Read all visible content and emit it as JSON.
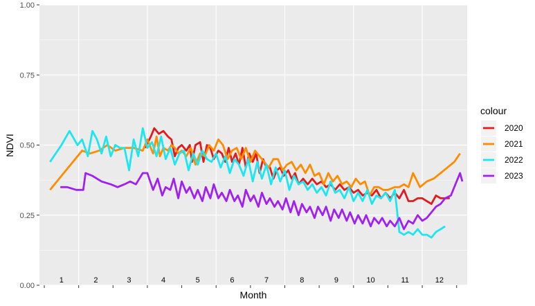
{
  "chart_data": {
    "type": "line",
    "title": "",
    "xlabel": "Month",
    "ylabel": "NDVI",
    "ylim": [
      0,
      1
    ],
    "xlim": [
      0,
      365
    ],
    "yticks": [
      "0.00",
      "0.25",
      "0.50",
      "0.75",
      "1.00"
    ],
    "ytick_values": [
      0,
      0.25,
      0.5,
      0.75,
      1
    ],
    "month_labels": [
      "1",
      "2",
      "3",
      "4",
      "5",
      "6",
      "7",
      "8",
      "9",
      "10",
      "11",
      "12"
    ],
    "month_label_positions": [
      15,
      45,
      74,
      104,
      134,
      164,
      194,
      225,
      255,
      285,
      315,
      345
    ],
    "x_tick_positions": [
      0,
      30,
      60,
      90,
      120,
      150,
      180,
      210,
      240,
      270,
      300,
      330,
      360
    ],
    "grid": true,
    "legend_title": "colour",
    "legend_position": "right",
    "series": [
      {
        "name": "2020",
        "color": "#e31a1c",
        "x": [
          88,
          93,
          96,
          100,
          104,
          108,
          111,
          114,
          117,
          120,
          124,
          127,
          129,
          132,
          136,
          139,
          142,
          145,
          148,
          152,
          155,
          158,
          161,
          164,
          167,
          170,
          173,
          176,
          179,
          182,
          185,
          188,
          191,
          194,
          197,
          200,
          203,
          206,
          209,
          213,
          216,
          219,
          222,
          226,
          230,
          234,
          238,
          242,
          246,
          250,
          254,
          258,
          262,
          266,
          270,
          274,
          278,
          282,
          286,
          290,
          294,
          298,
          302,
          306,
          310,
          314,
          318,
          322,
          326,
          330,
          334,
          338,
          342,
          346,
          350,
          354
        ],
        "y": [
          0.49,
          0.53,
          0.56,
          0.54,
          0.55,
          0.53,
          0.52,
          0.46,
          0.49,
          0.5,
          0.48,
          0.5,
          0.44,
          0.5,
          0.51,
          0.44,
          0.5,
          0.49,
          0.45,
          0.48,
          0.47,
          0.44,
          0.49,
          0.44,
          0.47,
          0.43,
          0.49,
          0.42,
          0.47,
          0.44,
          0.47,
          0.4,
          0.45,
          0.42,
          0.42,
          0.38,
          0.41,
          0.42,
          0.39,
          0.41,
          0.38,
          0.4,
          0.36,
          0.38,
          0.36,
          0.38,
          0.36,
          0.37,
          0.35,
          0.36,
          0.34,
          0.36,
          0.34,
          0.35,
          0.33,
          0.34,
          0.32,
          0.33,
          0.32,
          0.34,
          0.31,
          0.33,
          0.31,
          0.33,
          0.31,
          0.34,
          0.3,
          0.3,
          0.31,
          0.31,
          0.3,
          0.29,
          0.32,
          0.31,
          0.31,
          0.31
        ]
      },
      {
        "name": "2021",
        "color": "#ff8c00",
        "x": [
          5,
          15,
          25,
          33,
          40,
          48,
          55,
          62,
          70,
          78,
          86,
          90,
          95,
          98,
          101,
          104,
          108,
          111,
          114,
          117,
          120,
          124,
          128,
          132,
          136,
          140,
          144,
          148,
          152,
          156,
          160,
          164,
          168,
          172,
          176,
          180,
          184,
          188,
          192,
          196,
          200,
          204,
          208,
          212,
          216,
          220,
          224,
          228,
          232,
          236,
          240,
          244,
          248,
          252,
          256,
          260,
          264,
          268,
          272,
          276,
          280,
          284,
          288,
          292,
          296,
          300,
          306,
          310,
          314,
          318,
          322,
          328,
          334,
          340,
          346,
          352,
          358,
          363
        ],
        "y": [
          0.34,
          0.39,
          0.44,
          0.48,
          0.47,
          0.48,
          0.5,
          0.48,
          0.49,
          0.49,
          0.48,
          0.52,
          0.47,
          0.53,
          0.46,
          0.49,
          0.48,
          0.5,
          0.49,
          0.47,
          0.48,
          0.46,
          0.49,
          0.43,
          0.47,
          0.46,
          0.5,
          0.48,
          0.52,
          0.5,
          0.45,
          0.48,
          0.49,
          0.45,
          0.49,
          0.44,
          0.48,
          0.46,
          0.44,
          0.42,
          0.45,
          0.45,
          0.41,
          0.43,
          0.44,
          0.41,
          0.43,
          0.4,
          0.43,
          0.39,
          0.4,
          0.36,
          0.4,
          0.37,
          0.39,
          0.36,
          0.37,
          0.35,
          0.38,
          0.36,
          0.37,
          0.32,
          0.35,
          0.35,
          0.34,
          0.34,
          0.35,
          0.35,
          0.36,
          0.35,
          0.4,
          0.35,
          0.37,
          0.38,
          0.4,
          0.42,
          0.44,
          0.47
        ]
      },
      {
        "name": "2022",
        "color": "#1ce6f0",
        "x": [
          5,
          15,
          22,
          29,
          33,
          38,
          42,
          46,
          50,
          54,
          58,
          62,
          66,
          70,
          74,
          78,
          82,
          86,
          90,
          94,
          98,
          102,
          106,
          110,
          114,
          118,
          122,
          126,
          130,
          134,
          138,
          142,
          146,
          150,
          154,
          158,
          162,
          166,
          170,
          174,
          178,
          182,
          186,
          190,
          194,
          198,
          202,
          206,
          210,
          214,
          218,
          222,
          226,
          230,
          234,
          238,
          242,
          246,
          250,
          254,
          258,
          262,
          266,
          270,
          274,
          278,
          282,
          286,
          290,
          294,
          298,
          302,
          306,
          310,
          314,
          318,
          322,
          326,
          330,
          334,
          338,
          342,
          346,
          350
        ],
        "y": [
          0.44,
          0.5,
          0.55,
          0.5,
          0.52,
          0.46,
          0.55,
          0.52,
          0.47,
          0.53,
          0.46,
          0.5,
          0.49,
          0.49,
          0.41,
          0.52,
          0.46,
          0.56,
          0.49,
          0.51,
          0.46,
          0.53,
          0.45,
          0.49,
          0.43,
          0.47,
          0.48,
          0.41,
          0.47,
          0.43,
          0.48,
          0.45,
          0.44,
          0.47,
          0.42,
          0.46,
          0.4,
          0.45,
          0.43,
          0.39,
          0.45,
          0.37,
          0.44,
          0.38,
          0.43,
          0.36,
          0.42,
          0.37,
          0.41,
          0.34,
          0.39,
          0.36,
          0.37,
          0.34,
          0.36,
          0.33,
          0.35,
          0.32,
          0.37,
          0.33,
          0.34,
          0.31,
          0.35,
          0.3,
          0.33,
          0.3,
          0.34,
          0.29,
          0.32,
          0.31,
          0.33,
          0.3,
          0.34,
          0.19,
          0.18,
          0.19,
          0.18,
          0.2,
          0.18,
          0.18,
          0.17,
          0.19,
          0.2,
          0.21
        ]
      },
      {
        "name": "2023",
        "color": "#a020f0",
        "x": [
          14,
          20,
          28,
          34,
          36,
          42,
          50,
          58,
          64,
          70,
          75,
          80,
          86,
          90,
          95,
          99,
          103,
          106,
          110,
          113,
          117,
          120,
          124,
          127,
          131,
          134,
          138,
          141,
          145,
          148,
          152,
          155,
          159,
          162,
          166,
          169,
          173,
          176,
          180,
          183,
          187,
          190,
          194,
          197,
          201,
          204,
          208,
          211,
          215,
          218,
          222,
          225,
          229,
          232,
          236,
          239,
          243,
          246,
          250,
          253,
          257,
          260,
          264,
          267,
          271,
          274,
          278,
          281,
          285,
          288,
          292,
          295,
          299,
          302,
          306,
          310,
          314,
          318,
          322,
          326,
          330,
          334,
          338,
          342,
          346,
          350,
          355,
          360,
          363,
          365
        ],
        "y": [
          0.35,
          0.35,
          0.34,
          0.34,
          0.4,
          0.39,
          0.37,
          0.36,
          0.35,
          0.36,
          0.37,
          0.36,
          0.4,
          0.4,
          0.34,
          0.38,
          0.32,
          0.35,
          0.34,
          0.38,
          0.31,
          0.37,
          0.33,
          0.35,
          0.31,
          0.34,
          0.3,
          0.35,
          0.31,
          0.36,
          0.31,
          0.33,
          0.3,
          0.34,
          0.3,
          0.32,
          0.28,
          0.34,
          0.3,
          0.32,
          0.28,
          0.33,
          0.29,
          0.31,
          0.28,
          0.3,
          0.27,
          0.31,
          0.26,
          0.3,
          0.25,
          0.29,
          0.26,
          0.28,
          0.24,
          0.28,
          0.25,
          0.28,
          0.23,
          0.27,
          0.24,
          0.27,
          0.23,
          0.26,
          0.22,
          0.25,
          0.22,
          0.25,
          0.21,
          0.24,
          0.22,
          0.24,
          0.21,
          0.23,
          0.21,
          0.24,
          0.2,
          0.23,
          0.22,
          0.25,
          0.23,
          0.24,
          0.26,
          0.28,
          0.29,
          0.31,
          0.32,
          0.37,
          0.4,
          0.37
        ]
      }
    ]
  }
}
